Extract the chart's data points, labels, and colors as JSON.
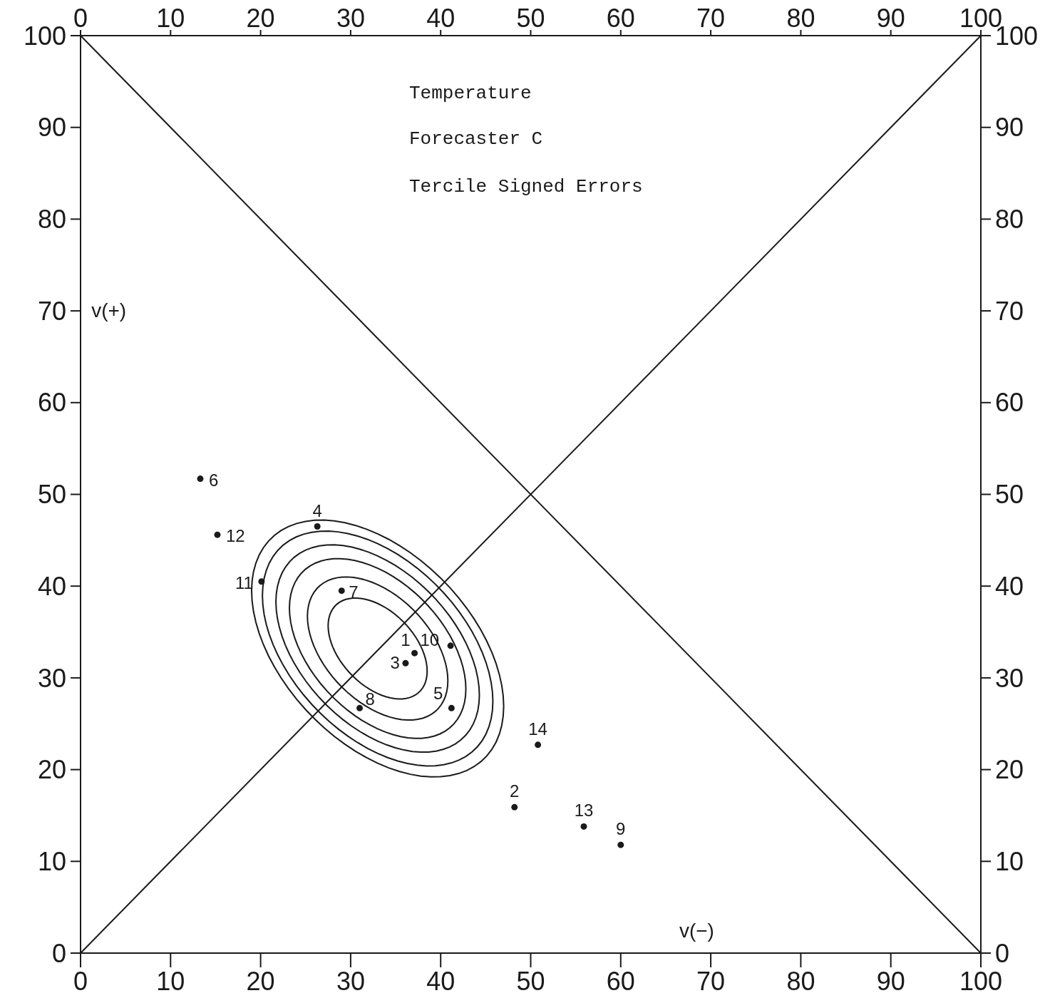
{
  "chart_data": {
    "type": "scatter",
    "title": "Temperature",
    "subtitle": "Forecaster C",
    "xlabel": "v(−)",
    "ylabel": "v(+)",
    "annotations": [
      "Tercile Signed Errors",
      {
        "text": "1",
        "x": 37.1,
        "y": 32.7
      },
      {
        "text": "2",
        "x": 48.2,
        "y": 15.9
      },
      {
        "text": "3",
        "x": 36.1,
        "y": 31.6
      },
      {
        "text": "4",
        "x": 26.3,
        "y": 46.5
      },
      {
        "text": "5",
        "x": 41.2,
        "y": 26.7
      },
      {
        "text": "6",
        "x": 13.3,
        "y": 51.7
      },
      {
        "text": "7",
        "x": 29.0,
        "y": 39.5
      },
      {
        "text": "8",
        "x": 31.0,
        "y": 26.7
      },
      {
        "text": "9",
        "x": 60.0,
        "y": 11.8
      },
      {
        "text": "10",
        "x": 41.1,
        "y": 33.5
      },
      {
        "text": "11",
        "x": 20.1,
        "y": 40.5
      },
      {
        "text": "12",
        "x": 15.2,
        "y": 45.6
      },
      {
        "text": "13",
        "x": 55.9,
        "y": 13.8
      },
      {
        "text": "14",
        "x": 50.8,
        "y": 22.7
      }
    ],
    "xlim": [
      0,
      100
    ],
    "ylim": [
      0,
      100
    ],
    "x2lim": [
      0,
      100
    ],
    "y2lim": [
      0,
      100
    ],
    "xticks": [
      0,
      10,
      20,
      30,
      40,
      50,
      60,
      70,
      80,
      90,
      100
    ],
    "yticks": [
      0,
      10,
      20,
      30,
      40,
      50,
      60,
      70,
      80,
      90,
      100
    ],
    "x2ticks": [
      0,
      10,
      20,
      30,
      40,
      50,
      60,
      70,
      80,
      90,
      100
    ],
    "y2ticks": [
      0,
      10,
      20,
      30,
      40,
      50,
      60,
      70,
      80,
      90,
      100
    ],
    "series": [
      {
        "type": "line",
        "color": "#1a1a1a",
        "x": [
          0,
          100
        ],
        "values": [
          0,
          100
        ]
      },
      {
        "type": "line",
        "color": "#1a1a1a",
        "x": [
          0,
          100
        ],
        "values": [
          100,
          0
        ]
      },
      {
        "color": "#1a1a1a",
        "marker": "circle",
        "x": [
          37.1,
          48.2,
          36.1,
          26.3,
          41.2,
          13.3,
          29.0,
          31.0,
          60.0,
          41.1,
          20.1,
          15.2,
          55.9,
          50.8
        ],
        "values": [
          32.7,
          15.9,
          31.6,
          46.5,
          26.7,
          51.7,
          39.5,
          26.7,
          11.8,
          33.5,
          40.5,
          45.6,
          13.8,
          22.7
        ]
      }
    ]
  }
}
